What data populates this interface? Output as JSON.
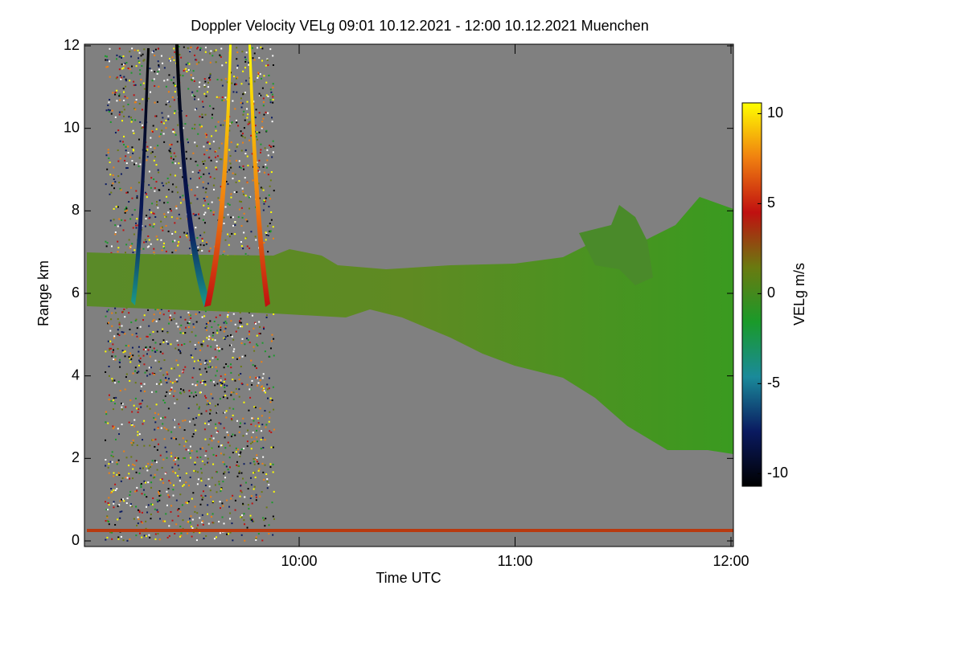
{
  "chart_data": {
    "type": "heatmap",
    "title": "Doppler Velocity VELg   09:01 10.12.2021 - 12:00 10.12.2021 Muenchen",
    "x_label": "Time UTC",
    "y_label": "Range km",
    "colorbar_label": "VELg m/s",
    "xlim": [
      541,
      720
    ],
    "xticks": [
      {
        "value": 600,
        "label": "10:00"
      },
      {
        "value": 660,
        "label": "11:00"
      },
      {
        "value": 720,
        "label": "12:00"
      }
    ],
    "ylim": [
      0,
      12
    ],
    "yticks": [
      0,
      2,
      4,
      6,
      8,
      10,
      12
    ],
    "clim": [
      -10.7,
      10.6
    ],
    "cticks": [
      -10,
      -5,
      0,
      5,
      10
    ],
    "colormap": [
      "#000000",
      "#0a1a60",
      "#1a8a9a",
      "#1a9a2a",
      "#6a7a10",
      "#c01010",
      "#f08010",
      "#ffff00"
    ]
  }
}
